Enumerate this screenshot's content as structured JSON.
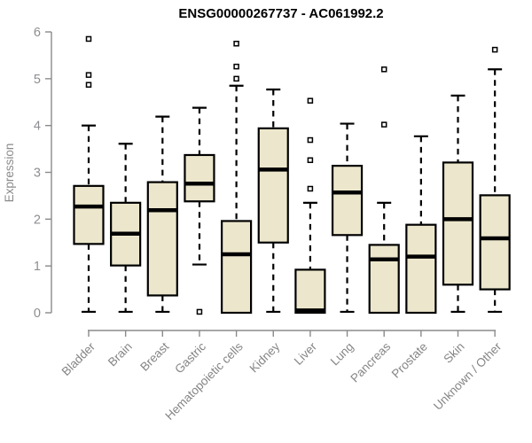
{
  "page": {
    "background": "#ffffff"
  },
  "chart_data": {
    "type": "box",
    "title": "ENSG00000267737 - AC061992.2",
    "ylabel": "Expression",
    "xlabel": "",
    "ylim": [
      0,
      6
    ],
    "yticks": [
      0,
      1,
      2,
      3,
      4,
      5,
      6
    ],
    "grid": false,
    "legend": "none",
    "categories": [
      "Bladder",
      "Brain",
      "Breast",
      "Gastric",
      "Hematopoietic cells",
      "Kidney",
      "Liver",
      "Lung",
      "Pancreas",
      "Prostate",
      "Skin",
      "Unknown / Other"
    ],
    "boxes": [
      {
        "category": "Bladder",
        "whisker_low": 0.02,
        "q1": 1.47,
        "median": 2.27,
        "q3": 2.71,
        "whisker_high": 4.0,
        "outliers": [
          4.87,
          5.08,
          5.85
        ]
      },
      {
        "category": "Brain",
        "whisker_low": 0.02,
        "q1": 1.01,
        "median": 1.69,
        "q3": 2.35,
        "whisker_high": 3.61,
        "outliers": []
      },
      {
        "category": "Breast",
        "whisker_low": 0.02,
        "q1": 0.37,
        "median": 2.19,
        "q3": 2.79,
        "whisker_high": 4.19,
        "outliers": []
      },
      {
        "category": "Gastric",
        "whisker_low": 1.03,
        "q1": 2.38,
        "median": 2.76,
        "q3": 3.37,
        "whisker_high": 4.38,
        "outliers": [
          0.02
        ]
      },
      {
        "category": "Hematopoietic cells",
        "whisker_low": 0.0,
        "q1": 0.0,
        "median": 1.25,
        "q3": 1.96,
        "whisker_high": 4.85,
        "outliers": [
          5.0,
          5.26,
          5.75
        ]
      },
      {
        "category": "Kidney",
        "whisker_low": 0.02,
        "q1": 1.5,
        "median": 3.06,
        "q3": 3.94,
        "whisker_high": 4.77,
        "outliers": []
      },
      {
        "category": "Liver",
        "whisker_low": 0.0,
        "q1": 0.0,
        "median": 0.05,
        "q3": 0.92,
        "whisker_high": 2.35,
        "outliers": [
          2.65,
          3.26,
          3.69,
          4.53
        ]
      },
      {
        "category": "Lung",
        "whisker_low": 0.02,
        "q1": 1.66,
        "median": 2.57,
        "q3": 3.14,
        "whisker_high": 4.04,
        "outliers": []
      },
      {
        "category": "Pancreas",
        "whisker_low": 0.0,
        "q1": 0.0,
        "median": 1.14,
        "q3": 1.45,
        "whisker_high": 2.35,
        "outliers": [
          4.02,
          5.2
        ]
      },
      {
        "category": "Prostate",
        "whisker_low": 0.0,
        "q1": 0.0,
        "median": 1.2,
        "q3": 1.88,
        "whisker_high": 3.77,
        "outliers": []
      },
      {
        "category": "Skin",
        "whisker_low": 0.02,
        "q1": 0.6,
        "median": 2.0,
        "q3": 3.21,
        "whisker_high": 4.64,
        "outliers": []
      },
      {
        "category": "Unknown / Other",
        "whisker_low": 0.02,
        "q1": 0.5,
        "median": 1.59,
        "q3": 2.51,
        "whisker_high": 5.2,
        "outliers": [
          5.62
        ]
      }
    ],
    "colors": {
      "box_fill": "#ece7cc",
      "box_border": "#000000",
      "median": "#000000",
      "axis": "#8a8a8a",
      "axis_text": "#8a8a8a",
      "title_text": "#000000",
      "background": "#ffffff"
    }
  }
}
